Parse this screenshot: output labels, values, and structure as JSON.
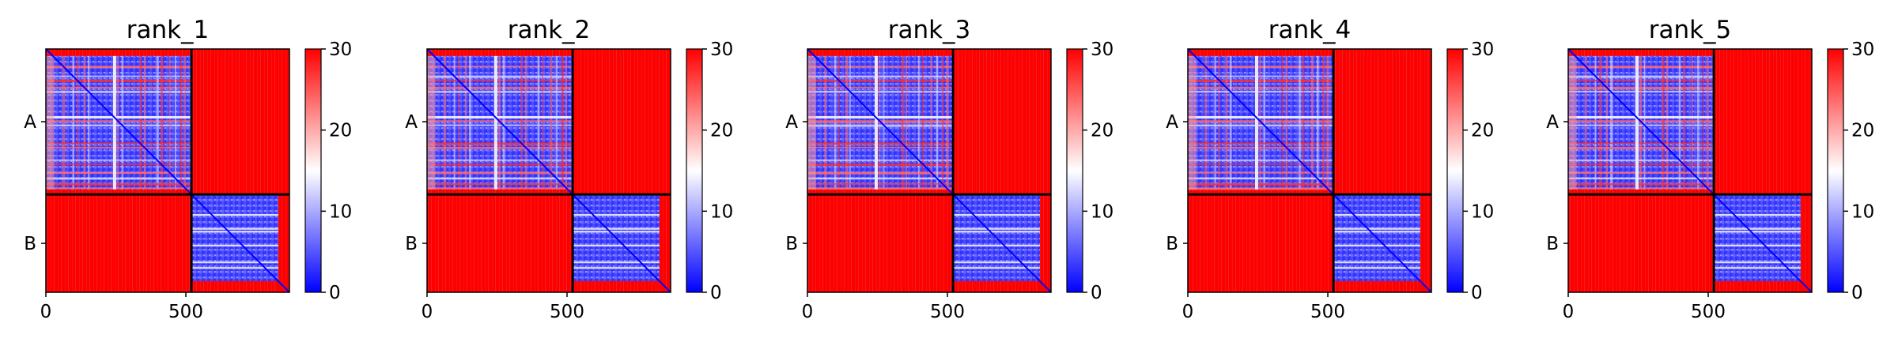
{
  "chart_data": {
    "type": "heatmap",
    "colormap": {
      "name": "bwr",
      "low": "#0000ff",
      "mid": "#ffffff",
      "high": "#ff0000",
      "range": [
        0,
        30
      ],
      "ticks": [
        "0",
        "10",
        "20",
        "30"
      ]
    },
    "chains": [
      {
        "name": "A",
        "start": 0,
        "length": 520
      },
      {
        "name": "B",
        "start": 520,
        "length": 350
      }
    ],
    "total_length": 870,
    "x_ticks": [
      {
        "value": 0,
        "label": "0"
      },
      {
        "value": 500,
        "label": "500"
      }
    ],
    "boundary_color": "#000000",
    "panels": [
      {
        "title": "rank_1"
      },
      {
        "title": "rank_2"
      },
      {
        "title": "rank_3"
      },
      {
        "title": "rank_4"
      },
      {
        "title": "rank_5"
      }
    ],
    "y_tick_labels": [
      "A",
      "B"
    ]
  }
}
